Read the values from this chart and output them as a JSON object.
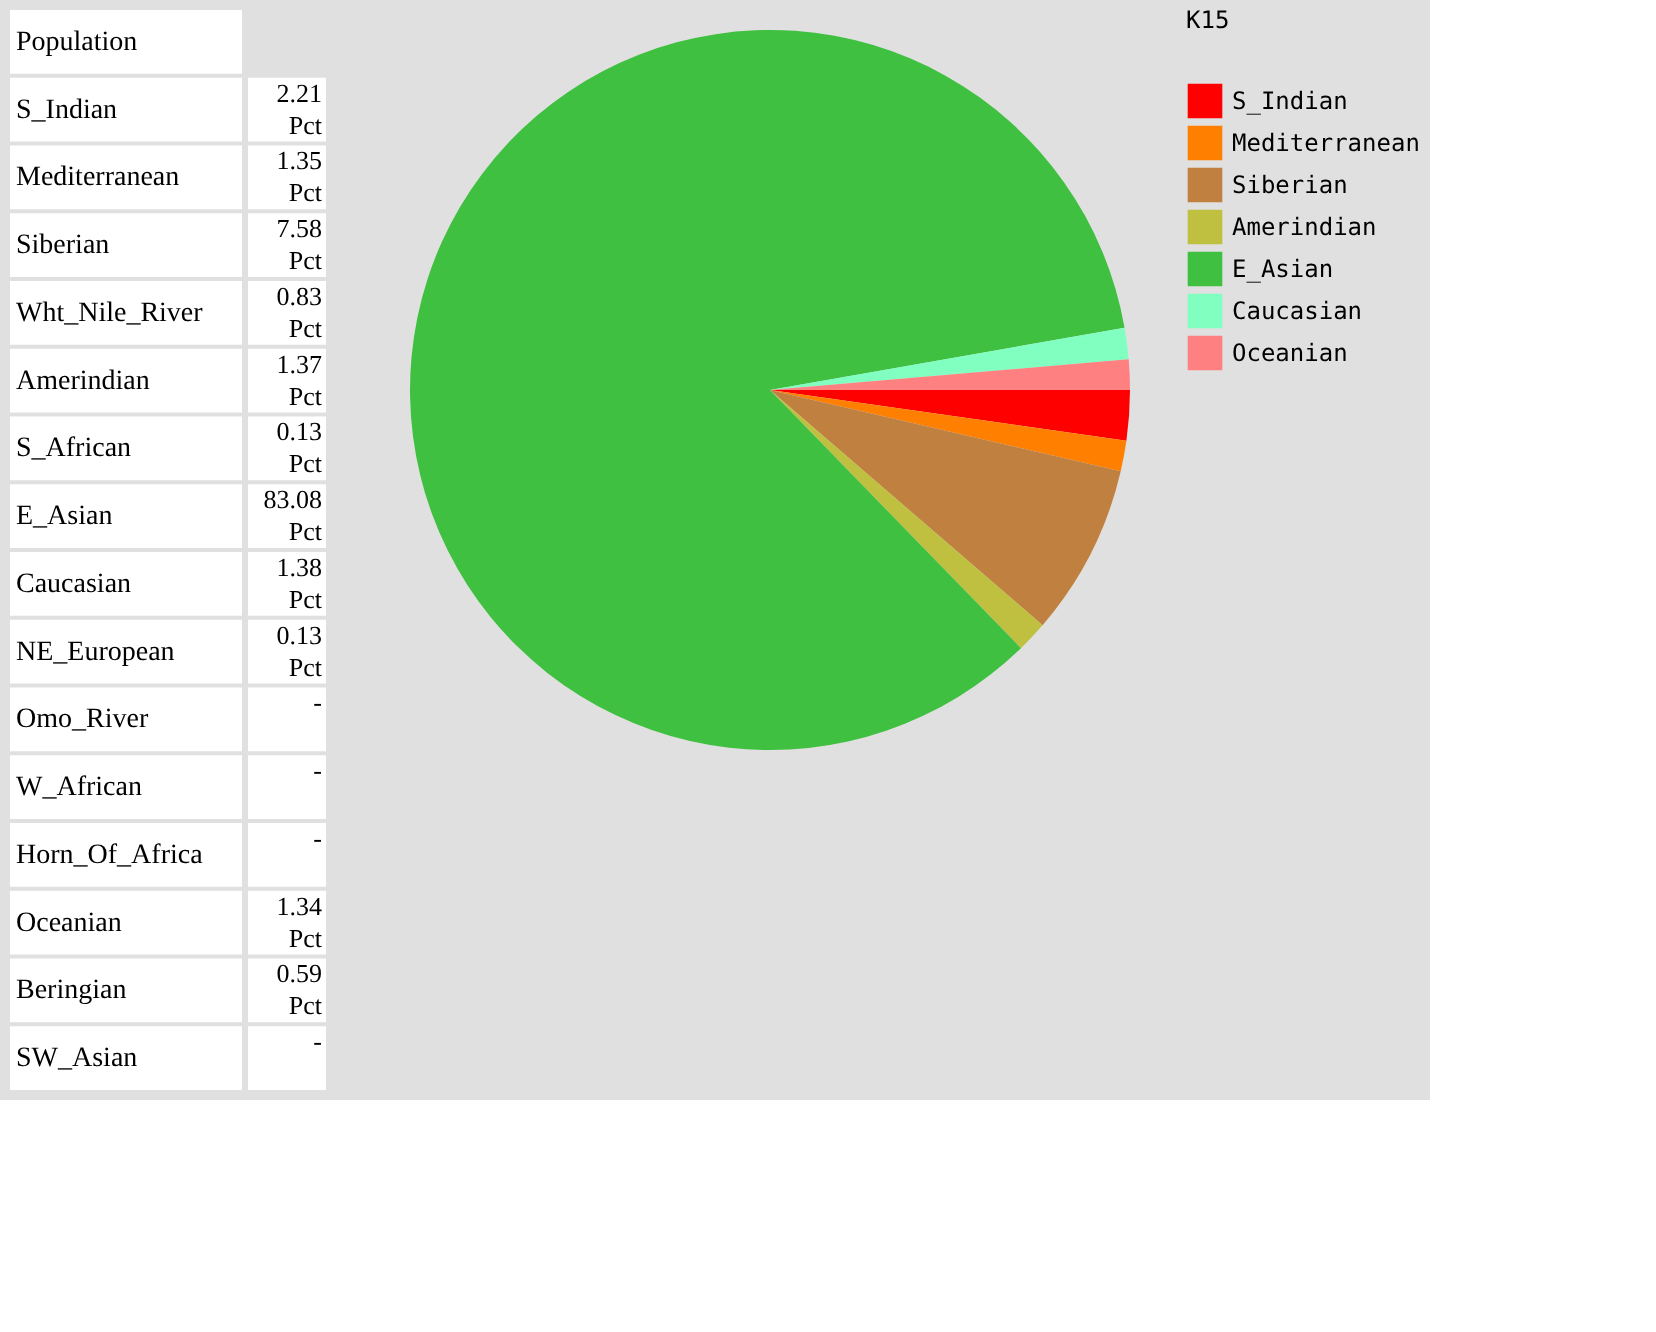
{
  "chart_data": [
    {
      "type": "other",
      "annotations": [
        "Population"
      ],
      "categories": [
        "S_Indian",
        "Mediterranean",
        "Siberian",
        "Wht_Nile_River",
        "Amerindian",
        "S_African",
        "E_Asian",
        "Caucasian",
        "NE_European",
        "Omo_River",
        "W_African",
        "Horn_Of_Africa",
        "Oceanian",
        "Beringian",
        "SW_Asian"
      ],
      "value_labels": [
        "2.21 Pct",
        "1.35 Pct",
        "7.58 Pct",
        "0.83 Pct",
        "1.37 Pct",
        "0.13 Pct",
        "83.08 Pct",
        "1.38 Pct",
        "0.13 Pct",
        "-",
        "-",
        "-",
        "1.34 Pct",
        "0.59 Pct",
        "-"
      ]
    },
    {
      "type": "pie",
      "legend_title": "K15",
      "legend": "right",
      "categories": [
        "S_Indian",
        "Mediterranean",
        "Siberian",
        "Amerindian",
        "E_Asian",
        "Caucasian",
        "Oceanian"
      ],
      "values": [
        2.21,
        1.35,
        7.58,
        1.37,
        83.08,
        1.38,
        1.34
      ],
      "colors": [
        "#ff0000",
        "#ff8000",
        "#c08040",
        "#c0c040",
        "#40c040",
        "#80ffc0",
        "#ff8080"
      ]
    }
  ]
}
